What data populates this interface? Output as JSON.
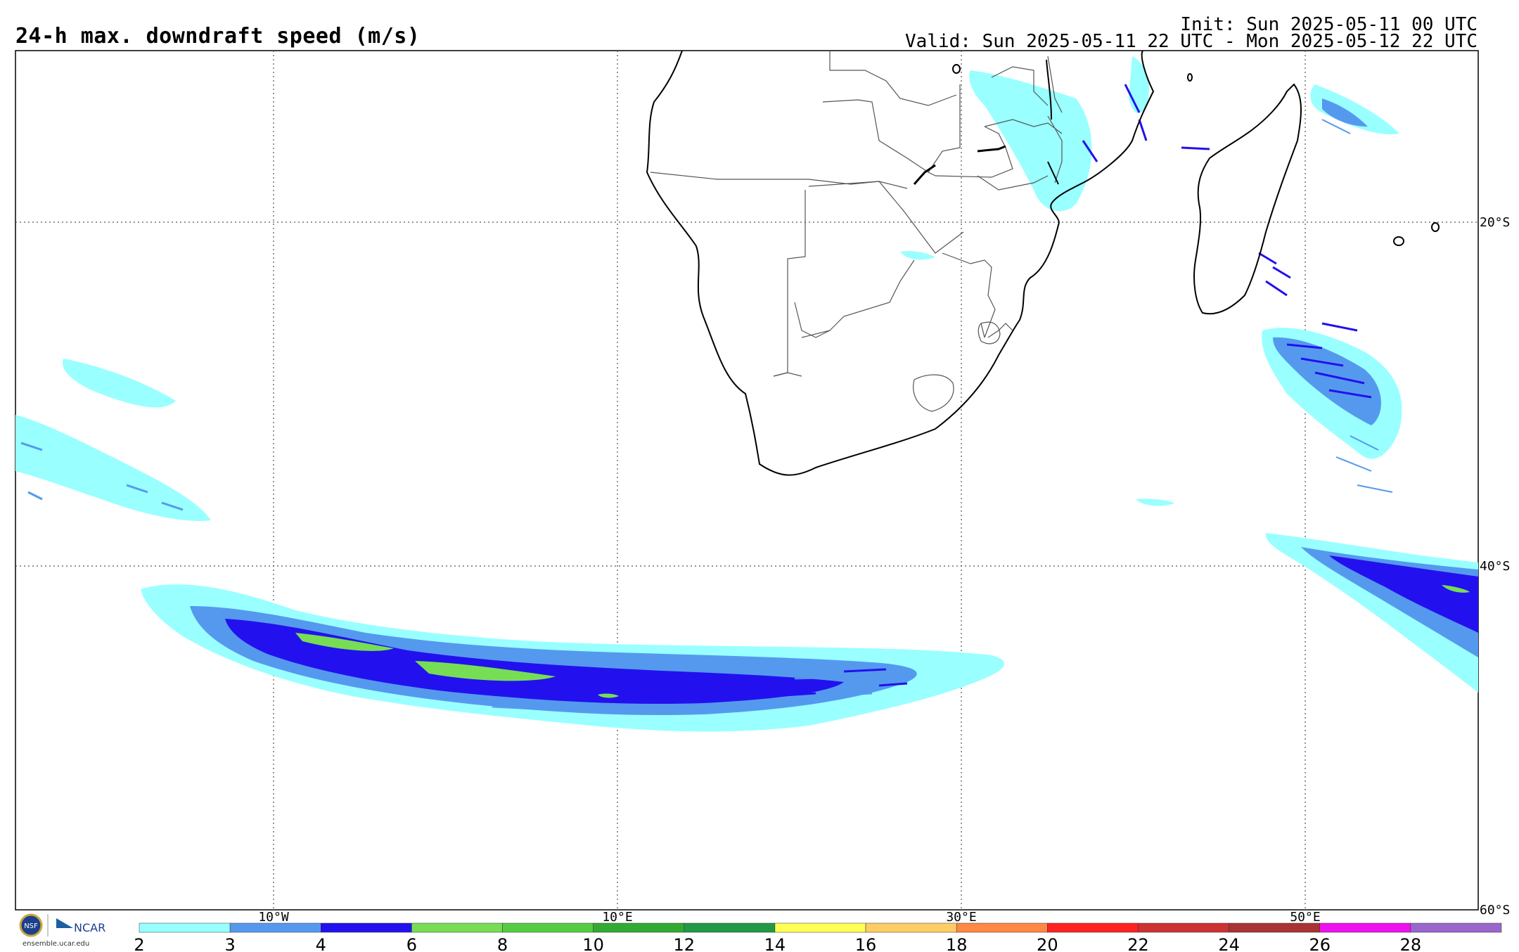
{
  "header": {
    "title": "24-h max. downdraft speed (m/s)",
    "init": "Init: Sun 2025-05-11 00 UTC",
    "valid": "Valid: Sun 2025-05-11 22 UTC - Mon 2025-05-12 22 UTC"
  },
  "map": {
    "lon_labels": [
      "10°W",
      "10°E",
      "30°E",
      "50°E"
    ],
    "lat_labels": [
      "20°S",
      "40°S",
      "60°S"
    ],
    "coast_color": "#000000",
    "border_color": "#555555",
    "grid_color": "#555555"
  },
  "colorbar": {
    "ticks": [
      "2",
      "3",
      "4",
      "6",
      "8",
      "10",
      "12",
      "14",
      "16",
      "18",
      "20",
      "22",
      "24",
      "26",
      "28"
    ],
    "colors": [
      "#99ffff",
      "#5599ee",
      "#2211ee",
      "#77dd55",
      "#55cc44",
      "#33aa33",
      "#229944",
      "#ffff55",
      "#ffcc66",
      "#ff8844",
      "#ff2222",
      "#cc3333",
      "#aa3333",
      "#ee11ee",
      "#9966cc"
    ]
  },
  "logo": {
    "nsf": "NSF",
    "ncar": "NCAR",
    "site": "ensemble.ucar.edu"
  },
  "legend_icons": [
    "nsf-logo-icon",
    "ncar-logo-icon"
  ]
}
